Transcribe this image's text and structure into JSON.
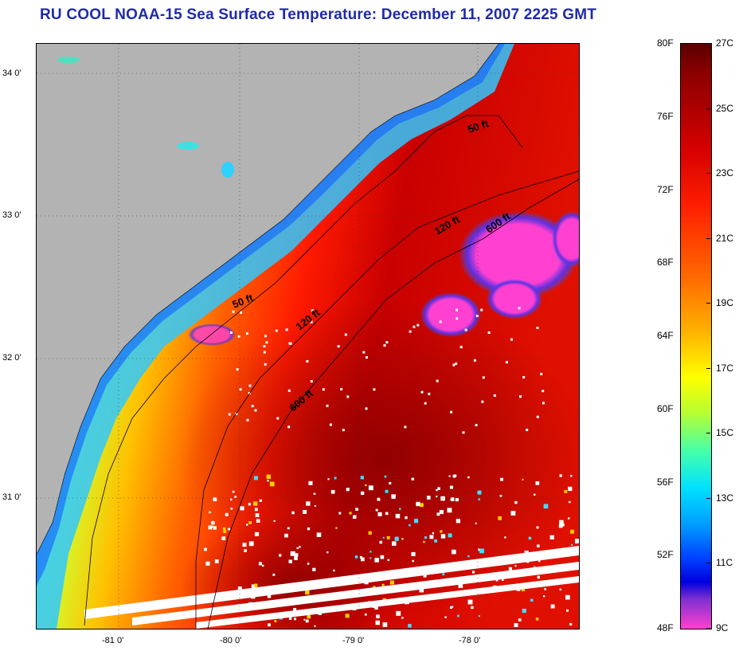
{
  "title": "RU COOL  NOAA-15  Sea Surface Temperature:  December 11, 2007 2225 GMT",
  "map": {
    "lat_labels": [
      "34 0'",
      "33 0'",
      "32 0'",
      "31 0'"
    ],
    "lon_labels": [
      "-81 0'",
      "-80 0'",
      "-79 0'",
      "-78 0'"
    ],
    "isobath_labels": [
      "50 ft",
      "50 ft",
      "120 ft",
      "120 ft",
      "600 ft",
      "600 ft"
    ],
    "colors": {
      "land": "#b3b3b3",
      "cloud": "#ffffff",
      "warm_core": "#9a0000",
      "cold_patch": "#ff40d0"
    }
  },
  "colorbar": {
    "fahrenheit_labels": [
      "80F",
      "76F",
      "72F",
      "68F",
      "64F",
      "60F",
      "56F",
      "52F",
      "48F"
    ],
    "celsius_labels": [
      "27C",
      "25C",
      "23C",
      "21C",
      "19C",
      "17C",
      "15C",
      "13C",
      "11C",
      "9C"
    ]
  }
}
